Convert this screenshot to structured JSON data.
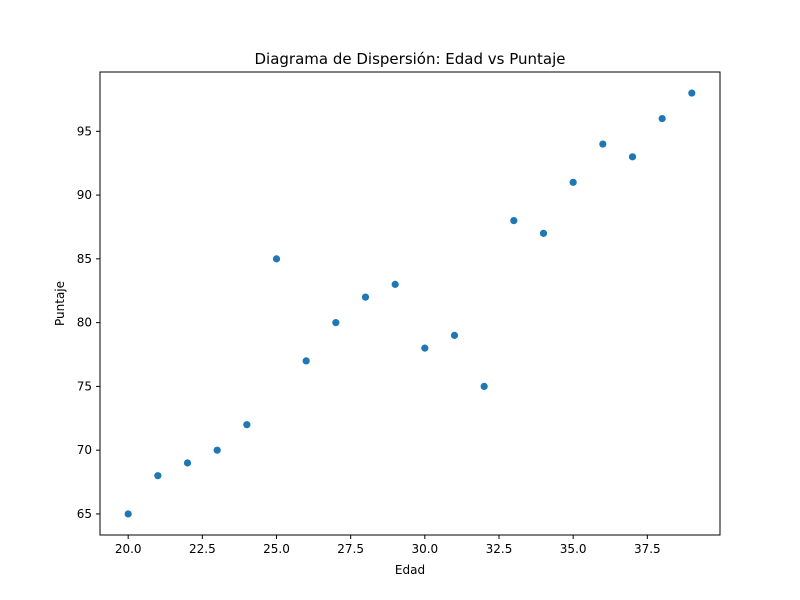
{
  "chart_data": {
    "type": "scatter",
    "title": "Diagrama de Dispersión: Edad vs Puntaje",
    "xlabel": "Edad",
    "ylabel": "Puntaje",
    "xlim": [
      19.05,
      39.95
    ],
    "ylim": [
      63.35,
      99.65
    ],
    "xticks": [
      20.0,
      22.5,
      25.0,
      27.5,
      30.0,
      32.5,
      35.0,
      37.5
    ],
    "xtick_labels": [
      "20.0",
      "22.5",
      "25.0",
      "27.5",
      "30.0",
      "32.5",
      "35.0",
      "37.5"
    ],
    "yticks": [
      65,
      70,
      75,
      80,
      85,
      90,
      95
    ],
    "ytick_labels": [
      "65",
      "70",
      "75",
      "80",
      "85",
      "90",
      "95"
    ],
    "grid": false,
    "marker_color": "#1f77b4",
    "series": [
      {
        "x": [
          20,
          21,
          22,
          23,
          24,
          25,
          26,
          27,
          28,
          29,
          30,
          31,
          32,
          33,
          34,
          35,
          36,
          37,
          38,
          39
        ],
        "y": [
          65,
          68,
          69,
          70,
          72,
          85,
          77,
          80,
          82,
          83,
          78,
          79,
          75,
          88,
          87,
          91,
          94,
          93,
          96,
          98
        ]
      }
    ]
  }
}
